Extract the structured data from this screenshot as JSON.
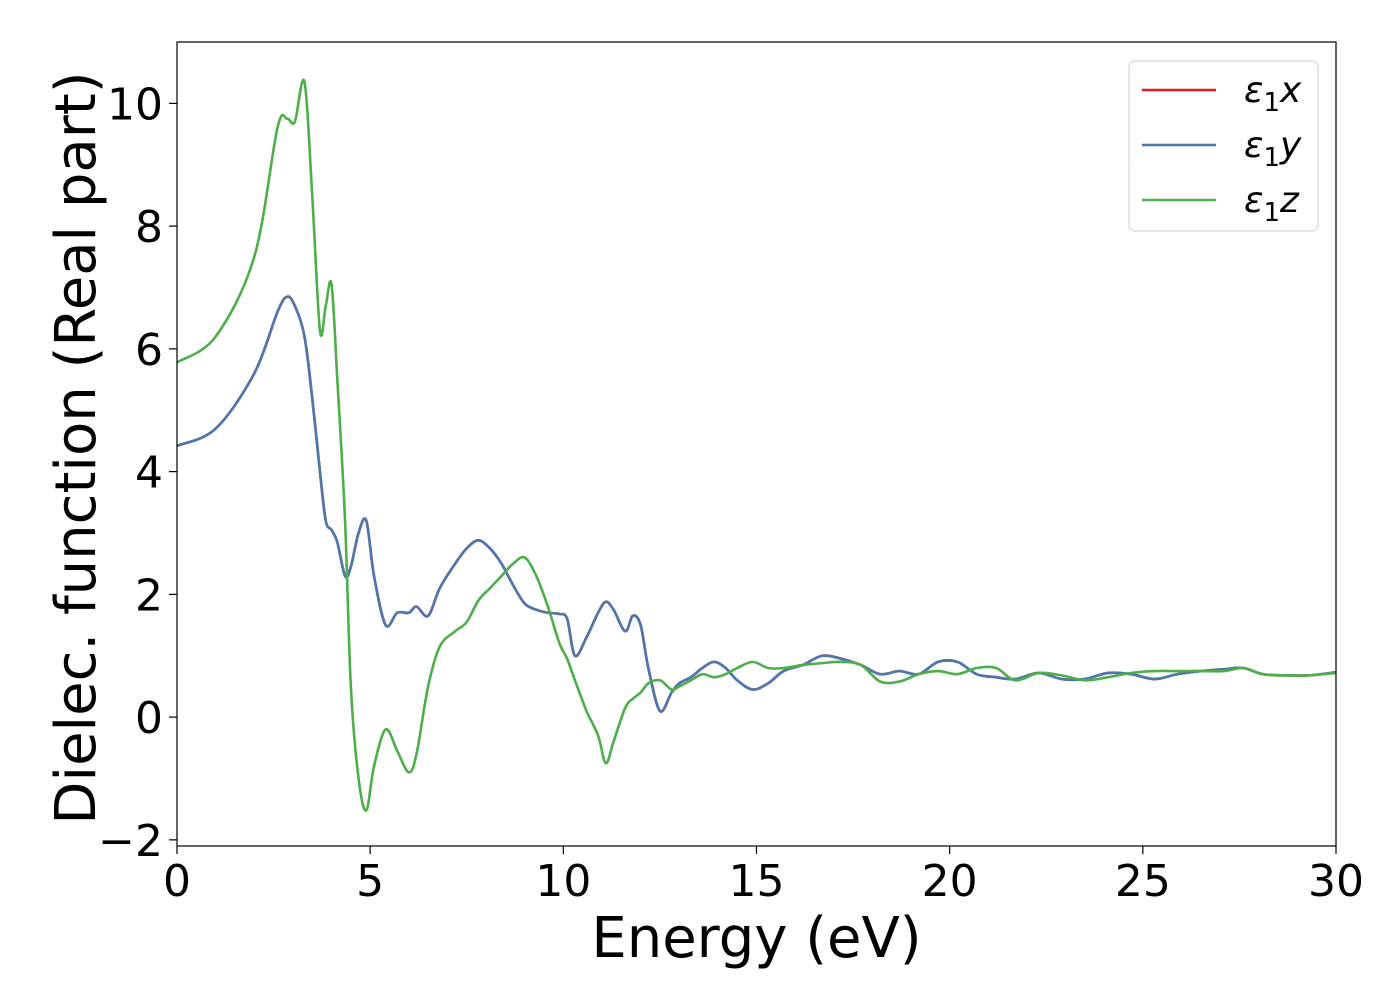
{
  "chart_data": {
    "type": "line",
    "title": "",
    "xlabel": "Energy (eV)",
    "ylabel": "Dielec. function (Real part)",
    "xlim": [
      0,
      30
    ],
    "ylim": [
      -2.1,
      11.0
    ],
    "xticks": [
      0,
      5,
      10,
      15,
      20,
      25,
      30
    ],
    "xtick_labels": [
      "0",
      "5",
      "10",
      "15",
      "20",
      "25",
      "30"
    ],
    "yticks": [
      -2,
      0,
      2,
      4,
      6,
      8,
      10
    ],
    "ytick_labels": [
      "−2",
      "0",
      "2",
      "4",
      "6",
      "8",
      "10"
    ],
    "grid": false,
    "legend_position": "top-right",
    "x": [
      0.0,
      1.0,
      2.0,
      2.6,
      2.85,
      3.05,
      3.3,
      3.5,
      3.7,
      3.85,
      4.0,
      4.15,
      4.35,
      4.5,
      4.7,
      4.9,
      5.1,
      5.4,
      5.7,
      6.0,
      6.2,
      6.5,
      6.8,
      7.2,
      7.5,
      7.8,
      8.1,
      8.4,
      8.7,
      9.0,
      9.3,
      9.6,
      9.9,
      10.1,
      10.3,
      10.6,
      10.9,
      11.1,
      11.3,
      11.6,
      11.8,
      12.0,
      12.2,
      12.5,
      12.8,
      13.0,
      13.3,
      13.6,
      13.9,
      14.2,
      14.5,
      14.9,
      15.3,
      15.7,
      16.2,
      16.7,
      17.2,
      17.7,
      18.2,
      18.7,
      19.2,
      19.7,
      20.2,
      20.7,
      21.2,
      21.7,
      22.3,
      22.9,
      23.5,
      24.1,
      24.7,
      25.3,
      25.9,
      26.5,
      27.1,
      27.6,
      28.1,
      28.7,
      29.3,
      30.0
    ],
    "series": [
      {
        "name": "ε₁x",
        "legend_main": "ε",
        "legend_sub": "1",
        "legend_var": "x",
        "color": "#e41a1c",
        "values": [
          4.42,
          4.7,
          5.6,
          6.6,
          6.85,
          6.7,
          6.2,
          5.2,
          4.0,
          3.2,
          3.05,
          2.85,
          2.3,
          2.45,
          3.0,
          3.2,
          2.3,
          1.5,
          1.7,
          1.7,
          1.8,
          1.65,
          2.1,
          2.5,
          2.75,
          2.88,
          2.75,
          2.5,
          2.15,
          1.85,
          1.75,
          1.7,
          1.68,
          1.6,
          1.0,
          1.3,
          1.7,
          1.88,
          1.75,
          1.4,
          1.65,
          1.5,
          0.8,
          0.1,
          0.4,
          0.55,
          0.65,
          0.8,
          0.9,
          0.8,
          0.6,
          0.45,
          0.55,
          0.75,
          0.85,
          1.0,
          0.95,
          0.85,
          0.7,
          0.75,
          0.7,
          0.9,
          0.9,
          0.7,
          0.65,
          0.62,
          0.72,
          0.62,
          0.62,
          0.72,
          0.7,
          0.62,
          0.7,
          0.75,
          0.78,
          0.8,
          0.7,
          0.68,
          0.68,
          0.73
        ]
      },
      {
        "name": "ε₁y",
        "legend_main": "ε",
        "legend_sub": "1",
        "legend_var": "y",
        "color": "#4a78b0",
        "values": [
          4.42,
          4.7,
          5.6,
          6.6,
          6.85,
          6.7,
          6.2,
          5.2,
          4.0,
          3.2,
          3.05,
          2.85,
          2.3,
          2.45,
          3.0,
          3.2,
          2.3,
          1.5,
          1.7,
          1.7,
          1.8,
          1.65,
          2.1,
          2.5,
          2.75,
          2.88,
          2.75,
          2.5,
          2.15,
          1.85,
          1.75,
          1.7,
          1.68,
          1.6,
          1.0,
          1.3,
          1.7,
          1.88,
          1.75,
          1.4,
          1.65,
          1.5,
          0.8,
          0.1,
          0.4,
          0.55,
          0.65,
          0.8,
          0.9,
          0.8,
          0.6,
          0.45,
          0.55,
          0.75,
          0.85,
          1.0,
          0.95,
          0.85,
          0.7,
          0.75,
          0.7,
          0.9,
          0.9,
          0.7,
          0.65,
          0.62,
          0.72,
          0.62,
          0.62,
          0.72,
          0.7,
          0.62,
          0.7,
          0.75,
          0.78,
          0.8,
          0.7,
          0.68,
          0.68,
          0.73
        ]
      },
      {
        "name": "ε₁z",
        "legend_main": "ε",
        "legend_sub": "1",
        "legend_var": "z",
        "color": "#4daf4a",
        "values": [
          5.78,
          6.2,
          7.5,
          9.6,
          9.75,
          9.7,
          10.35,
          8.5,
          6.3,
          6.7,
          7.05,
          5.5,
          3.2,
          0.5,
          -1.0,
          -1.52,
          -0.8,
          -0.2,
          -0.55,
          -0.9,
          -0.6,
          0.5,
          1.15,
          1.4,
          1.55,
          1.9,
          2.1,
          2.3,
          2.5,
          2.6,
          2.3,
          1.8,
          1.2,
          0.95,
          0.6,
          0.1,
          -0.3,
          -0.75,
          -0.4,
          0.15,
          0.3,
          0.4,
          0.55,
          0.6,
          0.45,
          0.5,
          0.6,
          0.7,
          0.65,
          0.7,
          0.8,
          0.9,
          0.8,
          0.8,
          0.85,
          0.88,
          0.9,
          0.85,
          0.58,
          0.58,
          0.7,
          0.75,
          0.7,
          0.8,
          0.8,
          0.6,
          0.72,
          0.68,
          0.6,
          0.65,
          0.72,
          0.75,
          0.75,
          0.75,
          0.75,
          0.8,
          0.7,
          0.68,
          0.68,
          0.72
        ]
      }
    ]
  }
}
